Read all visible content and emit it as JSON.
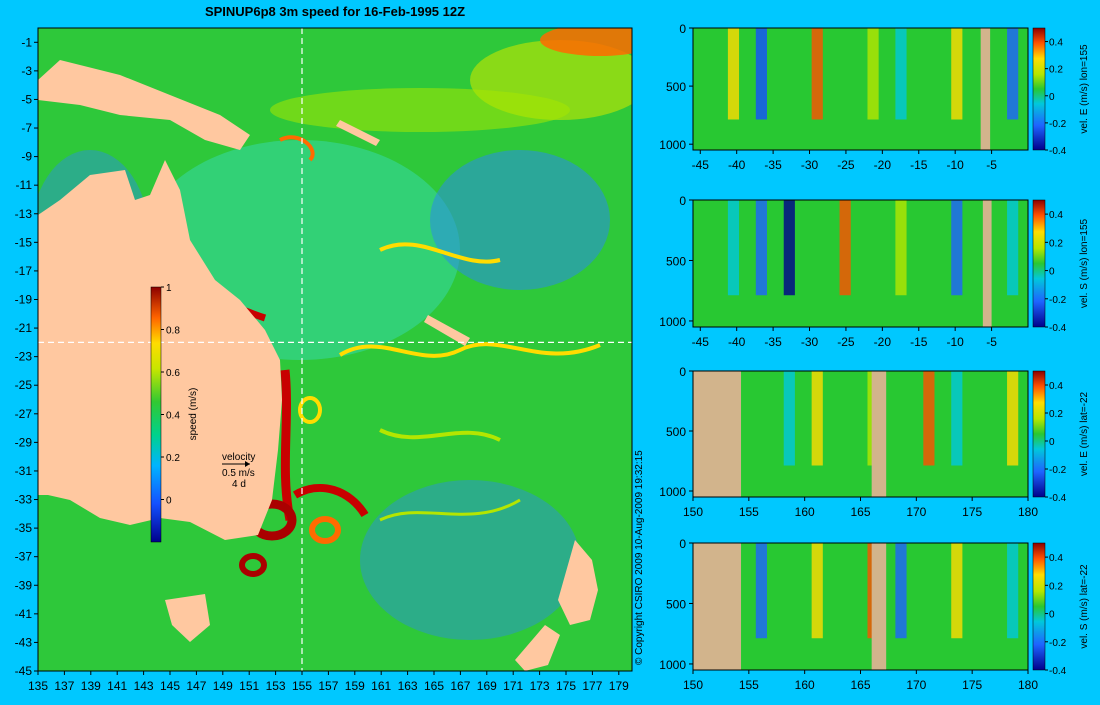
{
  "title": "SPINUP6p8 3m speed for 16-Feb-1995 12Z",
  "copyright": "© Copyright CSIRO 2009    10-Aug-2009 19:32:15",
  "colors": {
    "background": "#00c8ff",
    "land": "#ffc8a0",
    "section_land": "#d2b48c",
    "crosshair": "#ffffff"
  },
  "chart_data": [
    {
      "type": "heatmap",
      "name": "map",
      "title": "SPINUP6p8 3m speed for 16-Feb-1995 12Z",
      "x_ticks": [
        "135",
        "137",
        "139",
        "141",
        "143",
        "145",
        "147",
        "149",
        "151",
        "153",
        "155",
        "157",
        "159",
        "161",
        "163",
        "165",
        "167",
        "169",
        "171",
        "173",
        "175",
        "177",
        "179"
      ],
      "y_ticks": [
        "-1",
        "-3",
        "-5",
        "-7",
        "-9",
        "-11",
        "-13",
        "-15",
        "-17",
        "-19",
        "-21",
        "-23",
        "-25",
        "-27",
        "-29",
        "-31",
        "-33",
        "-35",
        "-37",
        "-39",
        "-41",
        "-43",
        "-45"
      ],
      "xlim": [
        135,
        180
      ],
      "ylim": [
        -45,
        0
      ],
      "crosshair": {
        "lon": 155,
        "lat": -22
      },
      "colorbar": {
        "label": "speed (m/s)",
        "range": [
          -0.2,
          1
        ],
        "ticks": [
          "0",
          "0.2",
          "0.4",
          "0.6",
          "0.8",
          "1"
        ]
      },
      "velocity_key": {
        "label": "velocity",
        "value": "0.5 m/s",
        "time": "4 d"
      }
    },
    {
      "type": "heatmap",
      "name": "section-1",
      "xlim": [
        -46,
        0
      ],
      "ylim": [
        1050,
        0
      ],
      "x_ticks": [
        "-45",
        "-40",
        "-35",
        "-30",
        "-25",
        "-20",
        "-15",
        "-10",
        "-5"
      ],
      "y_ticks": [
        "0",
        "500",
        "1000"
      ],
      "colorbar": {
        "label": "vel. E (m/s) lon=155",
        "range": [
          -0.4,
          0.5
        ],
        "ticks": [
          "0.4",
          "0.2",
          "0",
          "-0.2",
          "-0.4"
        ]
      }
    },
    {
      "type": "heatmap",
      "name": "section-2",
      "xlim": [
        -46,
        0
      ],
      "ylim": [
        1050,
        0
      ],
      "x_ticks": [
        "-45",
        "-40",
        "-35",
        "-30",
        "-25",
        "-20",
        "-15",
        "-10",
        "-5"
      ],
      "y_ticks": [
        "0",
        "500",
        "1000"
      ],
      "colorbar": {
        "label": "vel. S (m/s) lon=155",
        "range": [
          -0.4,
          0.5
        ],
        "ticks": [
          "0.4",
          "0.2",
          "0",
          "-0.2",
          "-0.4"
        ]
      }
    },
    {
      "type": "heatmap",
      "name": "section-3",
      "xlim": [
        150,
        180
      ],
      "ylim": [
        1050,
        0
      ],
      "x_ticks": [
        "150",
        "155",
        "160",
        "165",
        "170",
        "175",
        "180"
      ],
      "y_ticks": [
        "0",
        "500",
        "1000"
      ],
      "colorbar": {
        "label": "vel. E (m/s) lat=-22",
        "range": [
          -0.4,
          0.5
        ],
        "ticks": [
          "0.4",
          "0.2",
          "0",
          "-0.2",
          "-0.4"
        ]
      }
    },
    {
      "type": "heatmap",
      "name": "section-4",
      "xlim": [
        150,
        180
      ],
      "ylim": [
        1050,
        0
      ],
      "x_ticks": [
        "150",
        "155",
        "160",
        "165",
        "170",
        "175",
        "180"
      ],
      "y_ticks": [
        "0",
        "500",
        "1000"
      ],
      "colorbar": {
        "label": "vel. S (m/s) lat=-22",
        "range": [
          -0.4,
          0.5
        ],
        "ticks": [
          "0.4",
          "0.2",
          "0",
          "-0.2",
          "-0.4"
        ]
      }
    }
  ]
}
